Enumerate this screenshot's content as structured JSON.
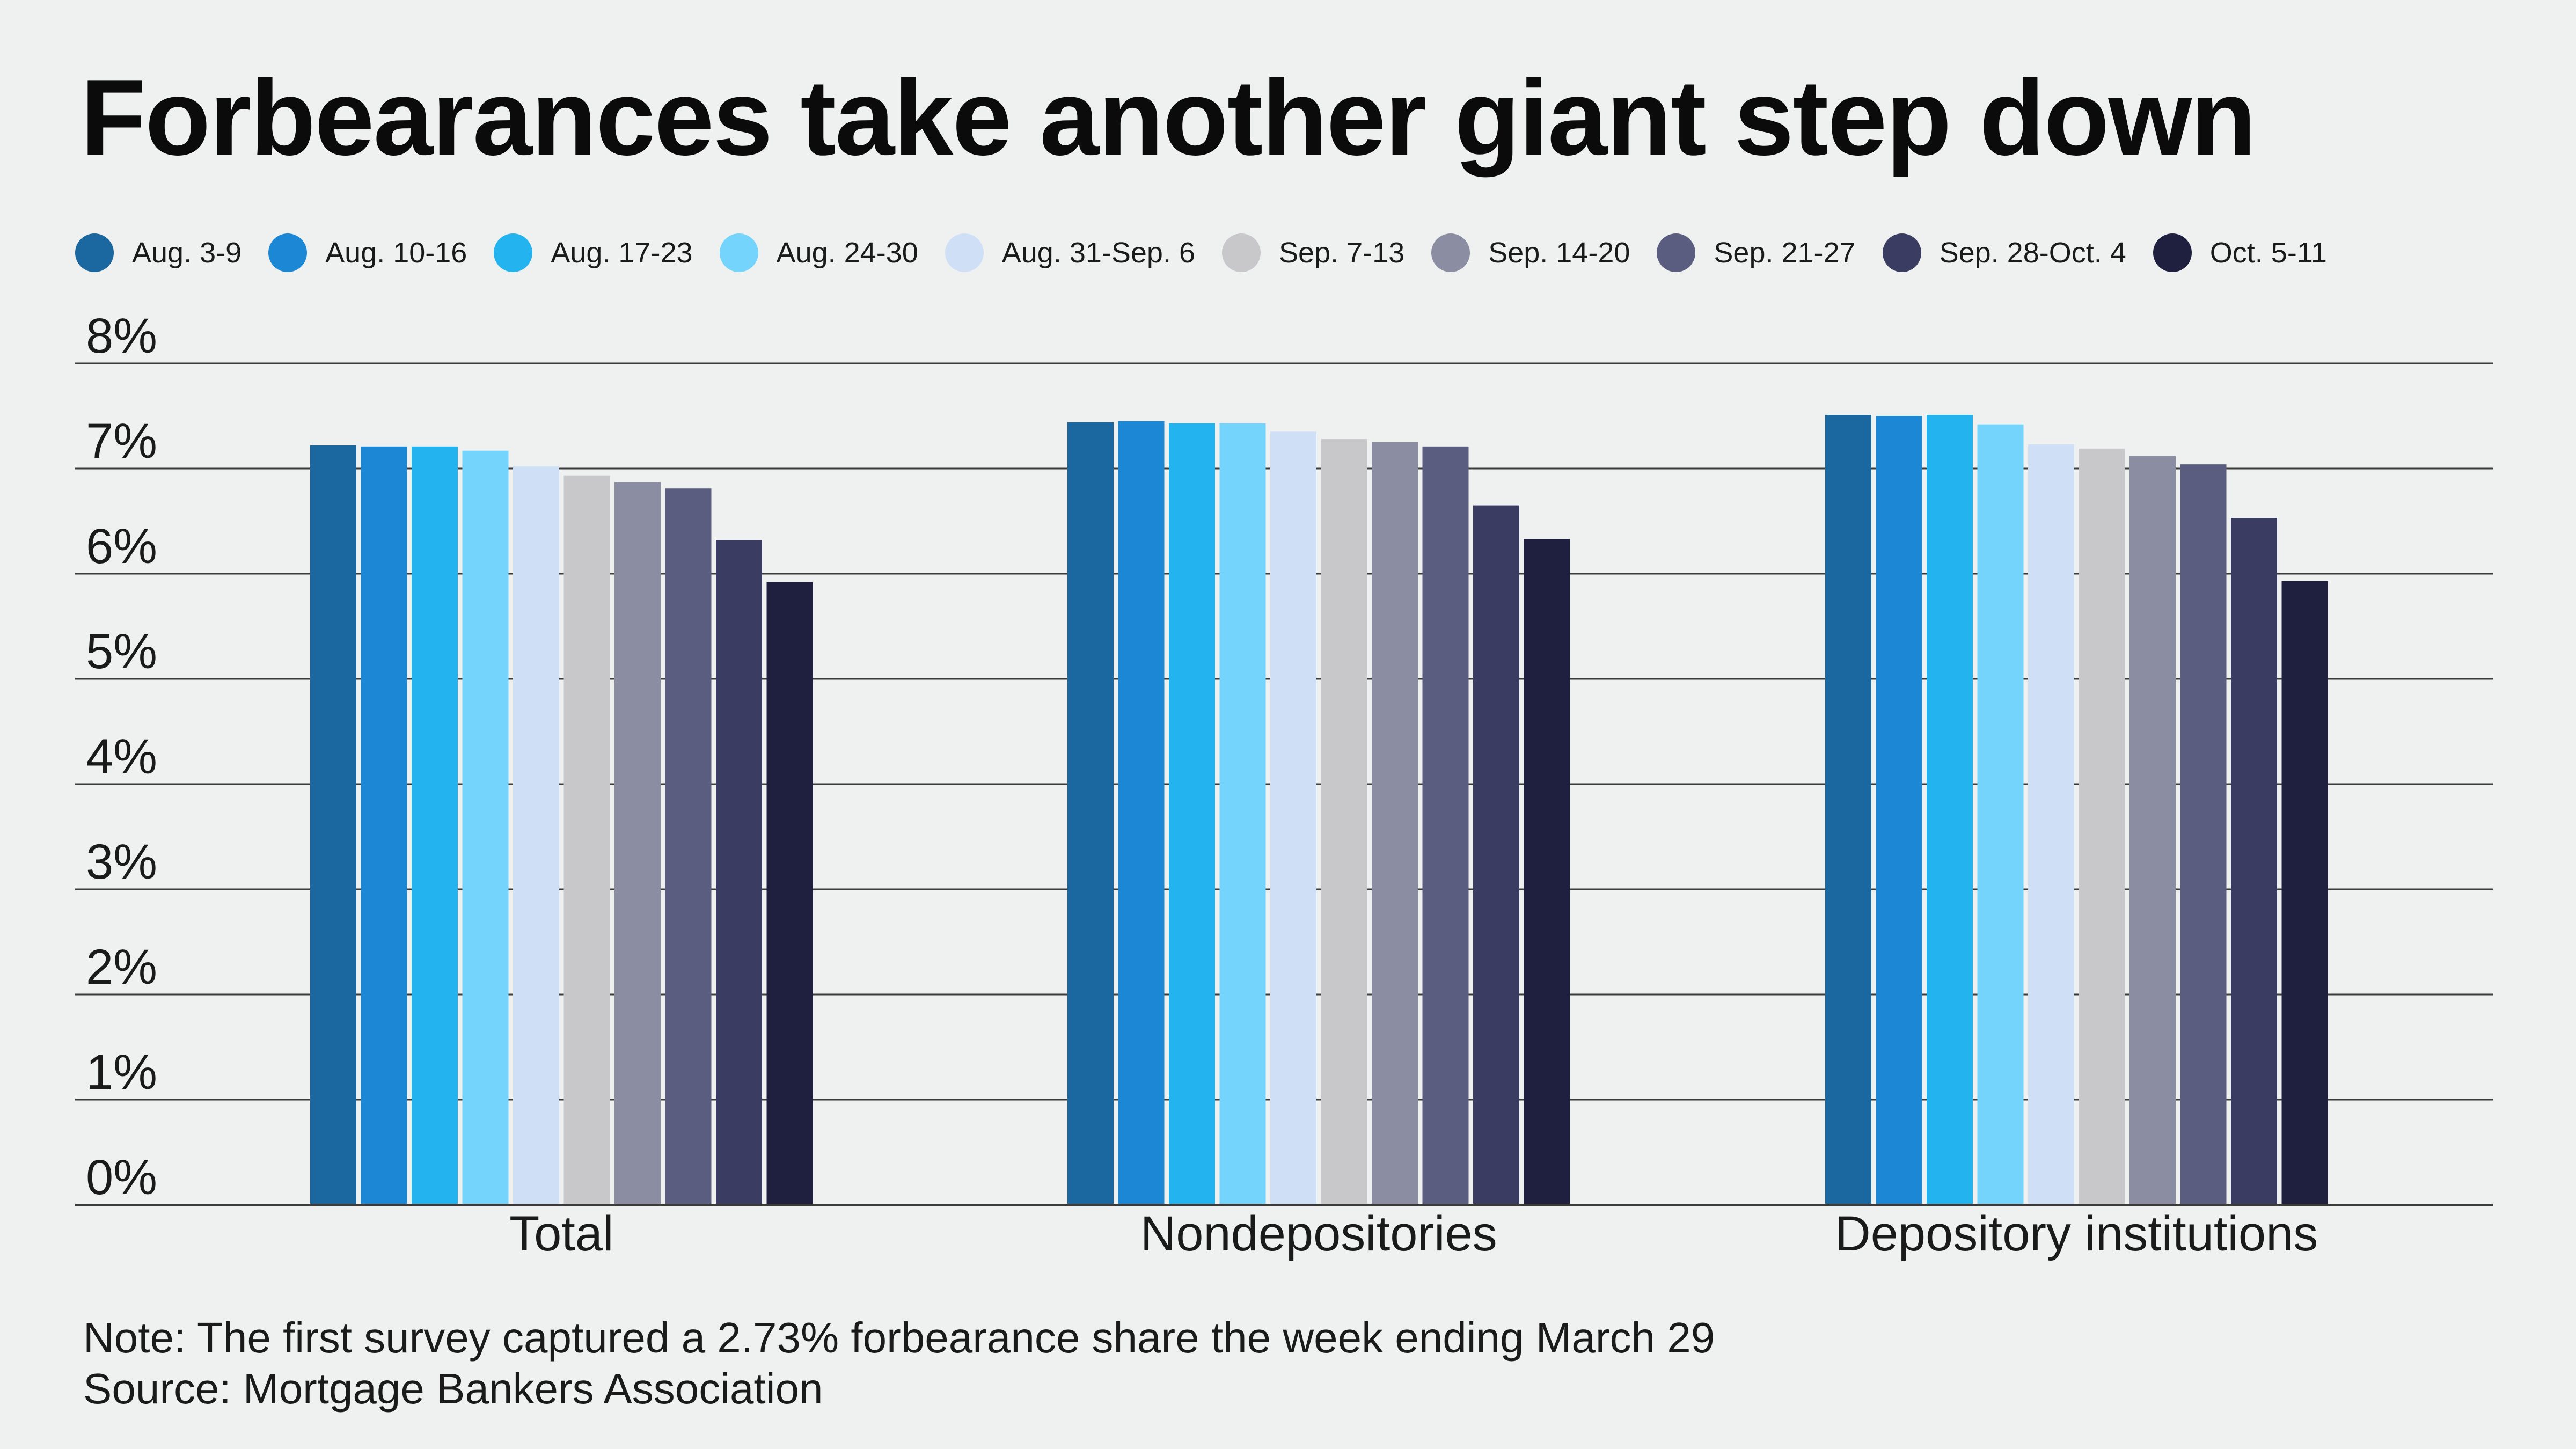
{
  "chart_data": {
    "type": "bar",
    "title": "Forbearances take another giant step down",
    "categories": [
      "Total",
      "Nondepositories",
      "Depository institutions"
    ],
    "series": [
      {
        "name": "Aug. 3-9",
        "color": "#1b67a0",
        "values": [
          7.22,
          7.44,
          7.51
        ]
      },
      {
        "name": "Aug. 10-16",
        "color": "#1c87d4",
        "values": [
          7.21,
          7.45,
          7.5
        ]
      },
      {
        "name": "Aug. 17-23",
        "color": "#23b3ef",
        "values": [
          7.21,
          7.43,
          7.51
        ]
      },
      {
        "name": "Aug. 24-30",
        "color": "#75d4fb",
        "values": [
          7.17,
          7.43,
          7.42
        ]
      },
      {
        "name": "Aug. 31-Sep. 6",
        "color": "#cfe0f6",
        "values": [
          7.02,
          7.35,
          7.23
        ]
      },
      {
        "name": "Sep. 7-13",
        "color": "#c8c8cb",
        "values": [
          6.93,
          7.28,
          7.19
        ]
      },
      {
        "name": "Sep. 14-20",
        "color": "#8b8da3",
        "values": [
          6.87,
          7.25,
          7.12
        ]
      },
      {
        "name": "Sep. 21-27",
        "color": "#5b5d80",
        "values": [
          6.81,
          7.21,
          7.04
        ]
      },
      {
        "name": "Sep. 28-Oct. 4",
        "color": "#3a3c61",
        "values": [
          6.32,
          6.65,
          6.53
        ]
      },
      {
        "name": "Oct. 5-11",
        "color": "#1f2040",
        "values": [
          5.92,
          6.33,
          5.93
        ]
      }
    ],
    "yticks": [
      "0%",
      "1%",
      "2%",
      "3%",
      "4%",
      "5%",
      "6%",
      "7%",
      "8%"
    ],
    "ylim": [
      0,
      8
    ],
    "xlabel": "",
    "ylabel": "",
    "grid": true,
    "legend": "top"
  },
  "notes": [
    "Note: The first survey captured a 2.73% forbearance share the week ending March 29",
    "Source: Mortgage Bankers Association"
  ]
}
